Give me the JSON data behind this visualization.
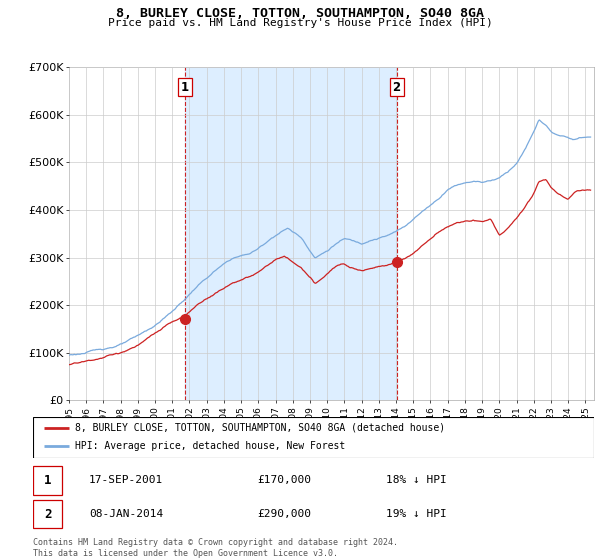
{
  "title": "8, BURLEY CLOSE, TOTTON, SOUTHAMPTON, SO40 8GA",
  "subtitle": "Price paid vs. HM Land Registry's House Price Index (HPI)",
  "ylabel_ticks": [
    "£0",
    "£100K",
    "£200K",
    "£300K",
    "£400K",
    "£500K",
    "£600K",
    "£700K"
  ],
  "ylim": [
    0,
    700000
  ],
  "xlim_start": 1995.0,
  "xlim_end": 2025.5,
  "point1_x": 2001.72,
  "point1_y": 170000,
  "point1_label": "1",
  "point2_x": 2014.03,
  "point2_y": 290000,
  "point2_label": "2",
  "legend_line1": "8, BURLEY CLOSE, TOTTON, SOUTHAMPTON, SO40 8GA (detached house)",
  "legend_line2": "HPI: Average price, detached house, New Forest",
  "table_row1_num": "1",
  "table_row1_date": "17-SEP-2001",
  "table_row1_price": "£170,000",
  "table_row1_hpi": "18% ↓ HPI",
  "table_row2_num": "2",
  "table_row2_date": "08-JAN-2014",
  "table_row2_price": "£290,000",
  "table_row2_hpi": "19% ↓ HPI",
  "copyright_text": "Contains HM Land Registry data © Crown copyright and database right 2024.\nThis data is licensed under the Open Government Licence v3.0.",
  "red_color": "#cc2222",
  "blue_color": "#7aaadd",
  "shade_color": "#ddeeff",
  "background_color": "#ffffff",
  "grid_color": "#cccccc"
}
